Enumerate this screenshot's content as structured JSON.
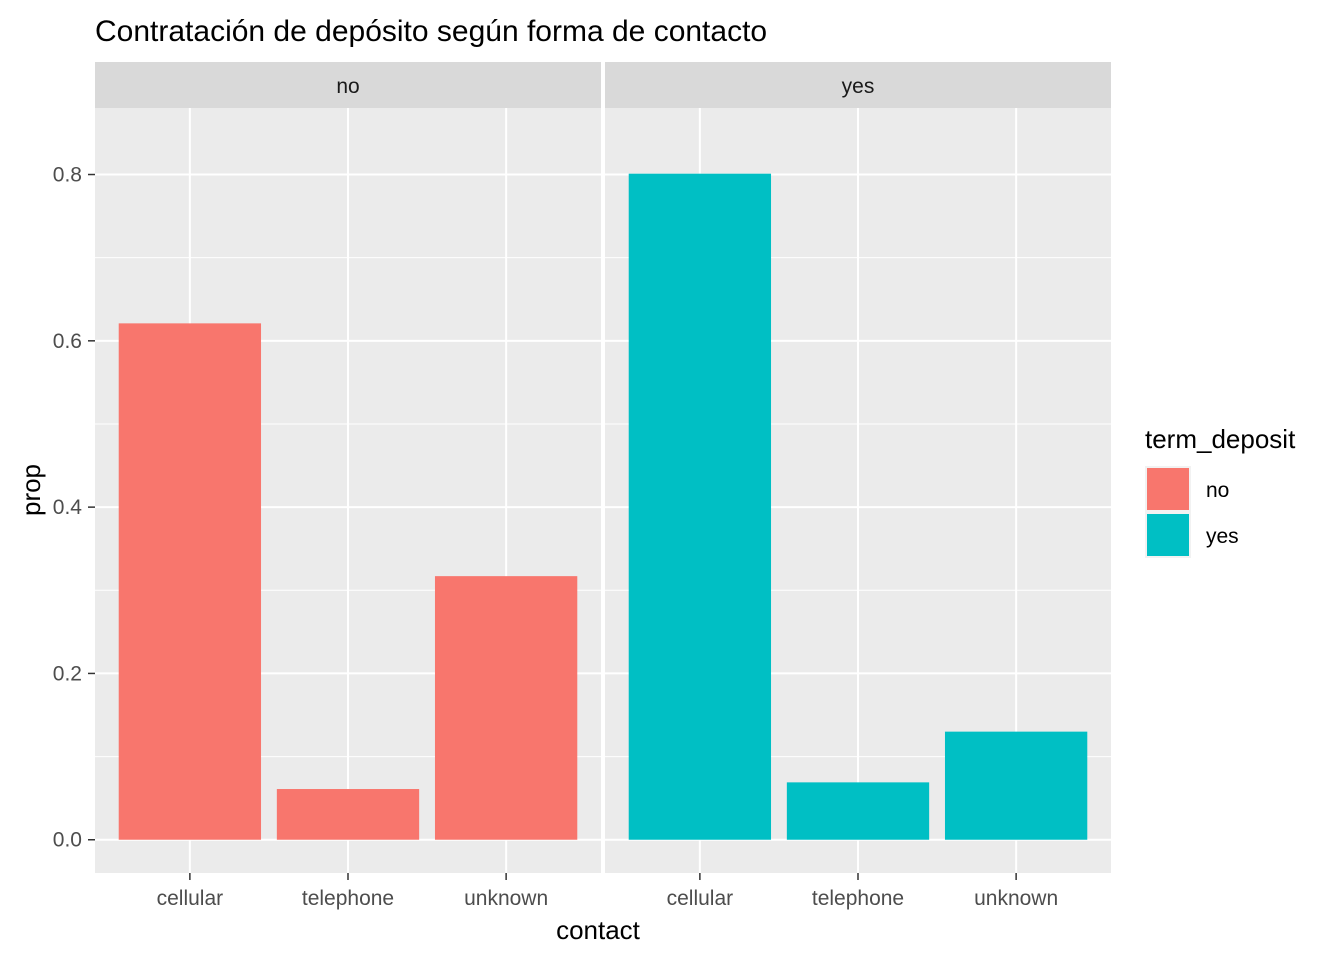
{
  "chart_data": {
    "type": "bar",
    "title": "Contratación de depósito según forma de contacto",
    "xlabel": "contact",
    "ylabel": "prop",
    "facet_variable": "term_deposit",
    "categories": [
      "cellular",
      "telephone",
      "unknown"
    ],
    "ylim": [
      -0.04,
      0.88
    ],
    "yticks": [
      0.0,
      0.2,
      0.4,
      0.6,
      0.8
    ],
    "ytick_labels": [
      "0.0",
      "0.2",
      "0.4",
      "0.6",
      "0.8"
    ],
    "grid": true,
    "panels": [
      {
        "label": "no",
        "fill": "#F8766D",
        "values": [
          0.621,
          0.061,
          0.317
        ]
      },
      {
        "label": "yes",
        "fill": "#00BFC4",
        "values": [
          0.801,
          0.069,
          0.13
        ]
      }
    ],
    "legend": {
      "title": "term_deposit",
      "position": "right",
      "entries": [
        {
          "label": "no",
          "color": "#F8766D"
        },
        {
          "label": "yes",
          "color": "#00BFC4"
        }
      ]
    }
  }
}
